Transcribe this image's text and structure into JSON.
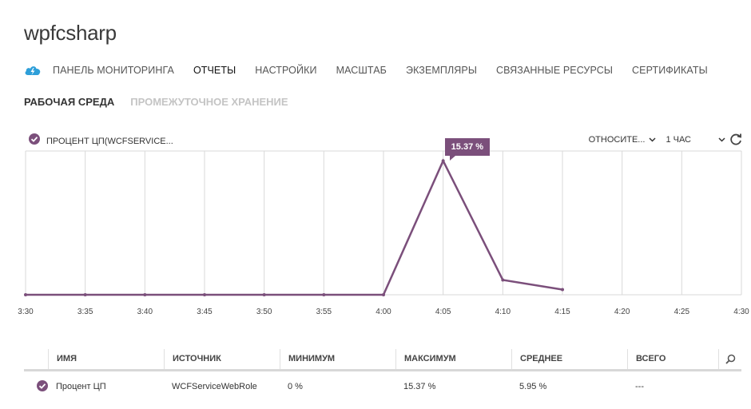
{
  "app": {
    "title": "wpfcsharp"
  },
  "nav": {
    "items": [
      "ПАНЕЛЬ МОНИТОРИНГА",
      "ОТЧЕТЫ",
      "НАСТРОЙКИ",
      "МАСШТАБ",
      "ЭКЗЕМПЛЯРЫ",
      "СВЯЗАННЫЕ РЕСУРСЫ",
      "СЕРТИФИКАТЫ"
    ],
    "active": "ОТЧЕТЫ"
  },
  "environment": {
    "tabs": [
      "РАБОЧАЯ СРЕДА",
      "ПРОМЕЖУТОЧНОЕ ХРАНЕНИЕ"
    ],
    "active": "РАБОЧАЯ СРЕДА"
  },
  "metric": {
    "label": "ПРОЦЕНТ ЦП(WCFSERVICE..."
  },
  "controls": {
    "relative_label": "ОТНОСИТЕ...",
    "range_label": "1 ЧАС"
  },
  "colors": {
    "series": "#7b4f7b",
    "grid": "#d9d9d9",
    "accent": "#2e9fd9"
  },
  "icons": {
    "cloud": "cloud-service-icon",
    "check": "check-circle-icon",
    "chevron": "chevron-down-icon",
    "refresh": "refresh-icon",
    "search": "search-icon"
  },
  "chart_data": {
    "type": "line",
    "x": [
      "3:30",
      "3:35",
      "3:40",
      "3:45",
      "3:50",
      "3:55",
      "4:00",
      "4:05",
      "4:10",
      "4:15",
      "4:20",
      "4:25",
      "4:30"
    ],
    "series": [
      {
        "name": "Процент ЦП",
        "values": [
          0,
          0,
          0,
          0,
          0,
          0,
          0,
          15.37,
          1.7,
          0.6,
          null,
          null,
          null
        ]
      }
    ],
    "ylim": [
      0,
      16.5
    ],
    "annotation": {
      "x": "4:05",
      "label": "15.37 %"
    },
    "grid": true
  },
  "table": {
    "headers": [
      "ИМЯ",
      "ИСТОЧНИК",
      "МИНИМУМ",
      "МАКСИМУМ",
      "СРЕДНЕЕ",
      "ВСЕГО"
    ],
    "rows": [
      [
        "Процент ЦП",
        "WCFServiceWebRole",
        "0 %",
        "15.37 %",
        "5.95 %",
        "---"
      ]
    ]
  }
}
